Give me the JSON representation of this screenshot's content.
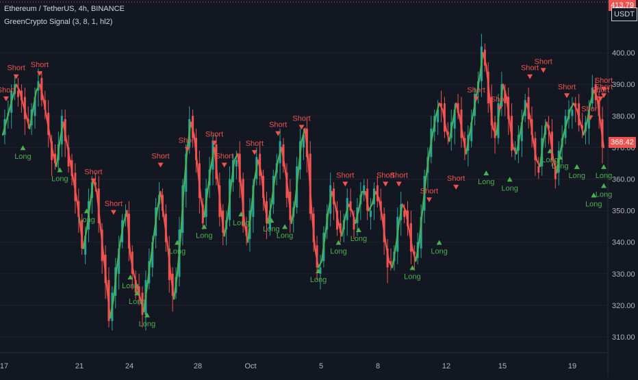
{
  "header": {
    "title": "Ethereum / TetherUS, 4h, BINANCE",
    "indicator": "GreenCrypto Signal (3, 8, 1, hl2)"
  },
  "price_axis": {
    "currency": "USDT",
    "last_price": "368.42",
    "top_price": "413.79"
  },
  "colors": {
    "bg": "#131722",
    "up": "#26a69a",
    "down": "#ef5350",
    "long": "#4caf50",
    "short": "#ef5350",
    "grid": "#1e222d"
  },
  "chart_data": {
    "type": "line",
    "title": "",
    "ylim": [
      305,
      415
    ],
    "y_ticks": [
      310,
      320,
      330,
      340,
      350,
      360,
      370,
      380,
      390,
      400
    ],
    "y_tick_labels": [
      "310.00",
      "320.00",
      "330.00",
      "340.00",
      "350.00",
      "360.00",
      "370.00",
      "380.00",
      "390.00",
      "400.00"
    ],
    "x_ticks": [
      "17",
      "21",
      "24",
      "28",
      "Oct",
      "5",
      "8",
      "12",
      "15",
      "19"
    ],
    "series": [
      {
        "style": "signal-line",
        "values": [
          374,
          378,
          382,
          386,
          390,
          388,
          384,
          380,
          376,
          382,
          388,
          390,
          386,
          380,
          374,
          368,
          364,
          372,
          378,
          372,
          366,
          360,
          354,
          346,
          338,
          344,
          352,
          360,
          356,
          346,
          336,
          326,
          316,
          322,
          332,
          340,
          346,
          350,
          336,
          330,
          326,
          322,
          318,
          326,
          334,
          342,
          350,
          356,
          348,
          340,
          330,
          322,
          330,
          342,
          358,
          370,
          378,
          374,
          364,
          354,
          348,
          356,
          364,
          370,
          360,
          350,
          342,
          348,
          358,
          366,
          368,
          358,
          346,
          340,
          350,
          360,
          366,
          362,
          352,
          346,
          352,
          360,
          366,
          370,
          364,
          356,
          346,
          352,
          362,
          372,
          376,
          366,
          350,
          338,
          332,
          334,
          342,
          350,
          356,
          352,
          346,
          342,
          348,
          352,
          350,
          346,
          350,
          356,
          356,
          350,
          352,
          356,
          354,
          348,
          340,
          334,
          332,
          338,
          346,
          352,
          350,
          344,
          338,
          334,
          340,
          350,
          360,
          368,
          374,
          380,
          384,
          382,
          376,
          372,
          378,
          384,
          380,
          374,
          368,
          374,
          380,
          386,
          392,
          400,
          396,
          386,
          376,
          374,
          382,
          390,
          386,
          378,
          370,
          368,
          374,
          380,
          384,
          380,
          372,
          366,
          364,
          372,
          378,
          374,
          366,
          362,
          368,
          374,
          378,
          382,
          384,
          382,
          378,
          374,
          378,
          384,
          388,
          386,
          378,
          370
        ]
      }
    ],
    "signals": [
      {
        "label": "Short",
        "i": 4,
        "price": 391
      },
      {
        "label": "Short",
        "i": 1,
        "price": 384
      },
      {
        "label": "Short",
        "i": 11,
        "price": 392
      },
      {
        "label": "Long",
        "i": 6,
        "price": 372
      },
      {
        "label": "Long",
        "i": 17,
        "price": 365
      },
      {
        "label": "Long",
        "i": 25,
        "price": 352
      },
      {
        "label": "Short",
        "i": 27,
        "price": 358
      },
      {
        "label": "Short",
        "i": 33,
        "price": 348
      },
      {
        "label": "Long",
        "i": 38,
        "price": 331
      },
      {
        "label": "Long",
        "i": 40,
        "price": 326
      },
      {
        "label": "Long",
        "i": 43,
        "price": 319
      },
      {
        "label": "Short",
        "i": 47,
        "price": 363
      },
      {
        "label": "Long",
        "i": 52,
        "price": 342
      },
      {
        "label": "Short",
        "i": 55,
        "price": 368
      },
      {
        "label": "Long",
        "i": 60,
        "price": 347
      },
      {
        "label": "Short",
        "i": 63,
        "price": 370
      },
      {
        "label": "Short",
        "i": 66,
        "price": 363
      },
      {
        "label": "Long",
        "i": 71,
        "price": 351
      },
      {
        "label": "Short",
        "i": 75,
        "price": 367
      },
      {
        "label": "Long",
        "i": 80,
        "price": 349
      },
      {
        "label": "Short",
        "i": 82,
        "price": 373
      },
      {
        "label": "Long",
        "i": 84,
        "price": 347
      },
      {
        "label": "Short",
        "i": 89,
        "price": 375
      },
      {
        "label": "Long",
        "i": 94,
        "price": 333
      },
      {
        "label": "Long",
        "i": 100,
        "price": 342
      },
      {
        "label": "Short",
        "i": 102,
        "price": 357
      },
      {
        "label": "Long",
        "i": 106,
        "price": 346
      },
      {
        "label": "Short",
        "i": 114,
        "price": 357
      },
      {
        "label": "Short",
        "i": 118,
        "price": 357
      },
      {
        "label": "Long",
        "i": 122,
        "price": 334
      },
      {
        "label": "Short",
        "i": 127,
        "price": 352
      },
      {
        "label": "Long",
        "i": 130,
        "price": 342
      },
      {
        "label": "Short",
        "i": 135,
        "price": 356
      },
      {
        "label": "Short",
        "i": 141,
        "price": 384
      },
      {
        "label": "Long",
        "i": 144,
        "price": 364
      },
      {
        "label": "Short",
        "i": 148,
        "price": 381
      },
      {
        "label": "Long",
        "i": 151,
        "price": 362
      },
      {
        "label": "Short",
        "i": 157,
        "price": 391
      },
      {
        "label": "Short",
        "i": 161,
        "price": 393
      },
      {
        "label": "Long",
        "i": 163,
        "price": 371
      },
      {
        "label": "Long",
        "i": 166,
        "price": 369
      },
      {
        "label": "Short",
        "i": 168,
        "price": 385
      },
      {
        "label": "Long",
        "i": 171,
        "price": 366
      },
      {
        "label": "Short",
        "i": 175,
        "price": 378
      },
      {
        "label": "Long",
        "i": 176,
        "price": 357
      },
      {
        "label": "Short",
        "i": 178,
        "price": 384
      },
      {
        "label": "Long",
        "i": 180,
        "price": 360
      },
      {
        "label": "Short",
        "i": 183,
        "price": 385
      },
      {
        "label": "Long",
        "i": 186,
        "price": 366
      },
      {
        "label": "Short",
        "i": 190,
        "price": 387
      }
    ]
  }
}
